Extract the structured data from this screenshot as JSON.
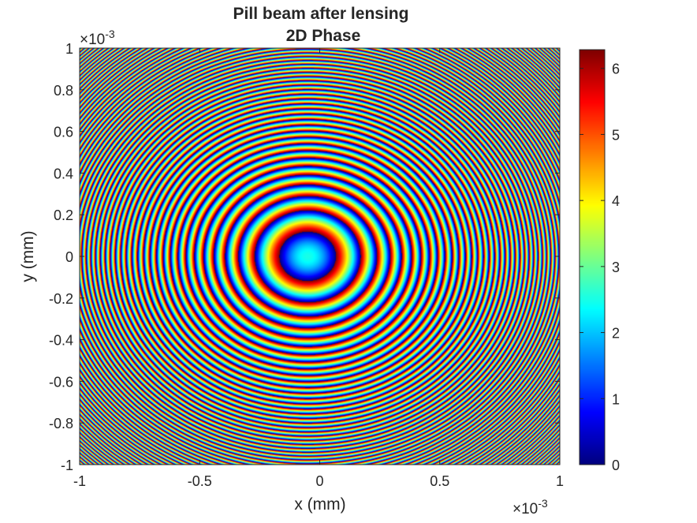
{
  "chart_data": {
    "type": "heatmap",
    "title_line1": "Pill beam after lensing",
    "title_line2": "2D Phase",
    "xlabel": "x (mm)",
    "ylabel": "y (mm)",
    "x_exponent": "×10",
    "x_exponent_power": "-3",
    "y_exponent": "×10",
    "y_exponent_power": "-3",
    "xlim": [
      -1,
      1
    ],
    "ylim": [
      -1,
      1
    ],
    "x_ticks": [
      -1,
      -0.5,
      0,
      0.5,
      1
    ],
    "x_tick_labels": [
      "-1",
      "-0.5",
      "0",
      "0.5",
      "1"
    ],
    "y_ticks": [
      -1,
      -0.8,
      -0.6,
      -0.4,
      -0.2,
      0,
      0.2,
      0.4,
      0.6,
      0.8,
      1
    ],
    "y_tick_labels": [
      "-1",
      "-0.8",
      "-0.6",
      "-0.4",
      "-0.2",
      "0",
      "0.2",
      "0.4",
      "0.6",
      "0.8",
      "1"
    ],
    "colormap": "jet",
    "clim": [
      0,
      6.2832
    ],
    "colorbar_ticks": [
      0,
      1,
      2,
      3,
      4,
      5,
      6
    ],
    "colorbar_tick_labels": [
      "0",
      "1",
      "2",
      "3",
      "4",
      "5",
      "6"
    ],
    "phase_center": [
      -0.05,
      0.0
    ],
    "center_phase": 2.5,
    "phase_quadratic_coefficient": 180,
    "pattern": "concentric phase-wrapped rings (quadratic lens phase, mod 2π)"
  }
}
